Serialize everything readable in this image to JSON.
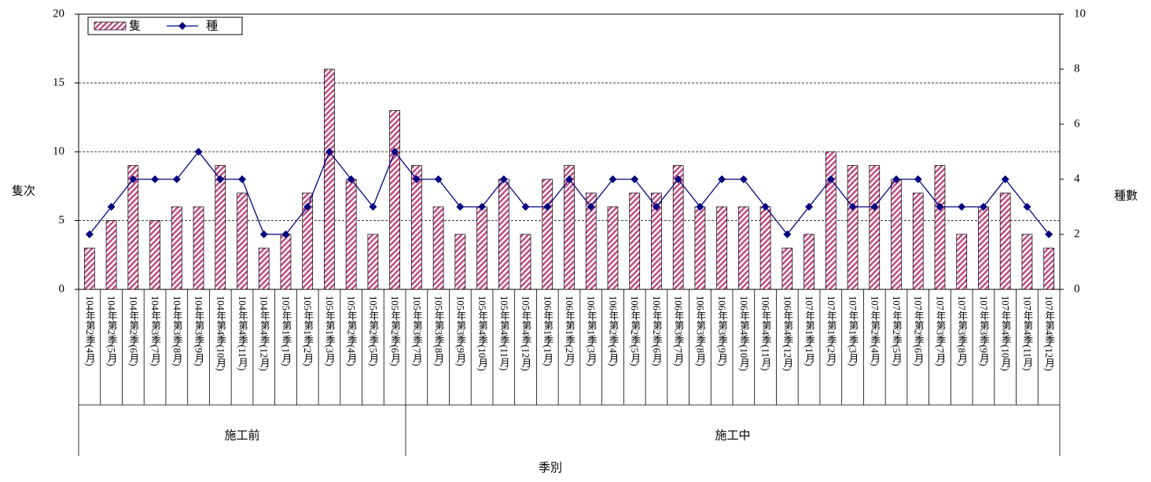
{
  "chart_data": {
    "type": "bar-line",
    "categories": [
      "104年第2季(4月)",
      "104年第2季(5月)",
      "104年第2季(6月)",
      "104年第3季(7月)",
      "104年第3季(8月)",
      "104年第3季(9月)",
      "104年第4季(10月)",
      "104年第4季(11月)",
      "104年第4季(12月)",
      "105年第1季(1月)",
      "105年第1季(2月)",
      "105年第1季(3月)",
      "105年第2季(4月)",
      "105年第2季(5月)",
      "105年第2季(6月)",
      "105年第3季(7月)",
      "105年第3季(8月)",
      "105年第3季(9月)",
      "105年第4季(10月)",
      "105年第4季(11月)",
      "105年第4季(12月)",
      "106年第1季(1月)",
      "106年第1季(2月)",
      "106年第1季(3月)",
      "106年第2季(4月)",
      "106年第2季(5月)",
      "106年第2季(6月)",
      "106年第3季(7月)",
      "106年第3季(8月)",
      "106年第3季(9月)",
      "106年第4季(10月)",
      "106年第4季(11月)",
      "106年第4季(12月)",
      "107年第1季(1月)",
      "107年第1季(2月)",
      "107年第1季(3月)",
      "107年第2季(4月)",
      "107年第2季(5月)",
      "107年第2季(6月)",
      "107年第3季(7月)",
      "107年第3季(8月)",
      "107年第3季(9月)",
      "107年第4季(10月)",
      "107年第4季(11月)",
      "107年第4季(12月)"
    ],
    "groups": [
      {
        "label": "施工前",
        "count": 15
      },
      {
        "label": "施工中",
        "count": 30
      }
    ],
    "series": [
      {
        "name": "隻",
        "color": "#c0507f",
        "values": [
          3,
          5,
          9,
          5,
          6,
          6,
          9,
          7,
          3,
          4,
          7,
          16,
          8,
          4,
          13,
          9,
          6,
          4,
          6,
          8,
          4,
          8,
          9,
          7,
          6,
          7,
          7,
          9,
          6,
          6,
          6,
          6,
          3,
          4,
          10,
          9,
          9,
          8,
          7,
          9,
          4,
          6,
          7,
          4,
          3
        ]
      },
      {
        "name": "種",
        "color": "#000080",
        "axis": "y2",
        "values": [
          2,
          3,
          4,
          4,
          4,
          5,
          4,
          4,
          2,
          2,
          3,
          5,
          4,
          3,
          5,
          4,
          4,
          3,
          3,
          4,
          3,
          3,
          4,
          3,
          4,
          4,
          3,
          4,
          3,
          4,
          4,
          3,
          2,
          3,
          4,
          3,
          3,
          4,
          4,
          3,
          3,
          3,
          4,
          3,
          2
        ]
      }
    ],
    "y_label": "隻次",
    "y2_label": "種數",
    "x_label": "季別",
    "ylim": [
      0,
      20
    ],
    "yticks": [
      0,
      5,
      10,
      15,
      20
    ],
    "y2lim": [
      0,
      10
    ],
    "y2ticks": [
      0,
      2,
      4,
      6,
      8,
      10
    ],
    "grid": true,
    "legend": "upper left"
  }
}
